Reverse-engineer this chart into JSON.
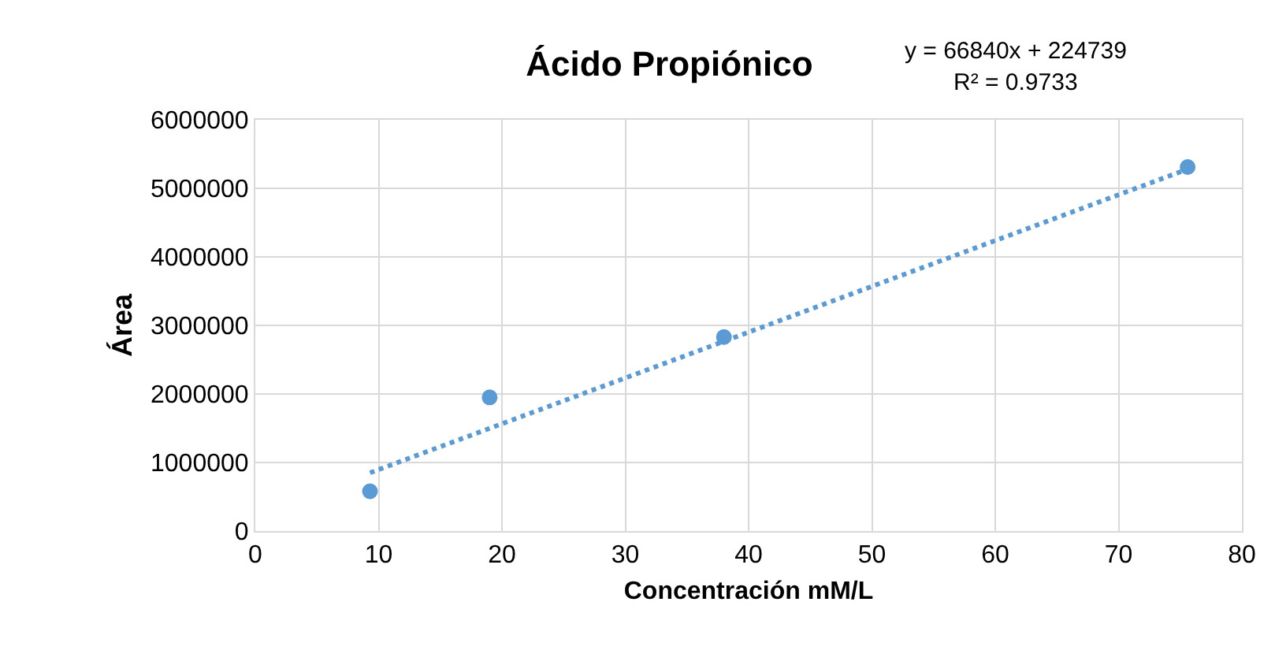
{
  "chart_data": {
    "type": "scatter",
    "title": "Ácido Propiónico",
    "xlabel": "Concentración mM/L",
    "ylabel": "Área",
    "annotations": [
      "y = 66840x + 224739",
      "R² = 0.9733"
    ],
    "series": [
      {
        "color": "#5b9bd5",
        "marker": "circle",
        "x": [
          9.3,
          19,
          38,
          75.6
        ],
        "values": [
          580000,
          1950000,
          2830000,
          5310000
        ]
      },
      {
        "type": "line",
        "color": "#5b9bd5",
        "line_style": "dotted",
        "marker": "none",
        "x": [
          9.3,
          75.6
        ],
        "values": [
          850000,
          5280000
        ]
      }
    ],
    "xlim": [
      0,
      80
    ],
    "xticks": [
      0,
      10,
      20,
      30,
      40,
      50,
      60,
      70,
      80
    ],
    "ylim": [
      0,
      6000000
    ],
    "yticks": [
      0,
      1000000,
      2000000,
      3000000,
      4000000,
      5000000,
      6000000
    ],
    "grid": true
  }
}
